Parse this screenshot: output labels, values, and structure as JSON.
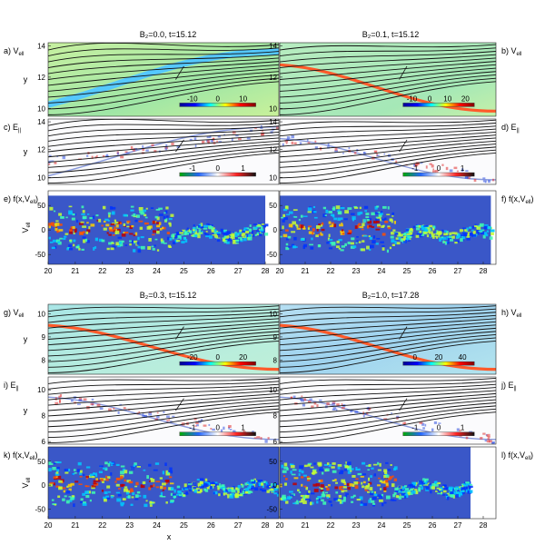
{
  "chart_data": [
    {
      "type": "heatmap",
      "titles": {
        "top_left": "B₂=0.0, t=15.12",
        "top_right": "B₂=0.1, t=15.12",
        "bottom_left": "B₂=0.3, t=15.12",
        "bottom_right": "B₂=1.0, t=17.28"
      },
      "xlabel": "x",
      "x_ticks": [
        20,
        21,
        22,
        23,
        24,
        25,
        26,
        27,
        28
      ],
      "xlim": [
        20,
        28.5
      ],
      "panels": [
        {
          "letter": "a)",
          "quantity": "V",
          "sub": "ell",
          "group": 0,
          "row": 0,
          "col": 0,
          "field": "V",
          "yticks": [
            10,
            12,
            14
          ],
          "ylim": [
            9.5,
            14.2
          ],
          "colorbar": [
            -10,
            0,
            10
          ],
          "cb_labels": [
            "-10",
            "0",
            "10"
          ],
          "ylabel": "y"
        },
        {
          "letter": "b)",
          "quantity": "V",
          "sub": "ell",
          "group": 0,
          "row": 0,
          "col": 1,
          "field": "V",
          "yticks": [
            10,
            12,
            14
          ],
          "ylim": [
            9.5,
            14.2
          ],
          "colorbar": [
            -10,
            0,
            10,
            20
          ],
          "cb_labels": [
            "-10",
            "0",
            "10",
            "20"
          ]
        },
        {
          "letter": "c)",
          "quantity": "E",
          "sub": "||",
          "group": 0,
          "row": 1,
          "col": 0,
          "field": "E",
          "yticks": [
            10,
            12,
            14
          ],
          "ylim": [
            9.5,
            14.2
          ],
          "colorbar": [
            -1,
            0,
            1
          ],
          "cb_labels": [
            "-1",
            "0",
            "1"
          ],
          "ylabel": "y"
        },
        {
          "letter": "d)",
          "quantity": "E",
          "sub": "||",
          "group": 0,
          "row": 1,
          "col": 1,
          "field": "E",
          "yticks": [
            10,
            12,
            14
          ],
          "ylim": [
            9.5,
            14.2
          ],
          "colorbar": [
            -1,
            0,
            1
          ],
          "cb_labels": [
            "-1",
            "0",
            "1"
          ]
        },
        {
          "letter": "e)",
          "quantity": "f(x,V",
          "sub": "ell",
          "group": 0,
          "row": 2,
          "col": 0,
          "field": "F",
          "yticks": [
            -50,
            0,
            50
          ],
          "ylim": [
            -70,
            80
          ],
          "ylabel": "V_ell"
        },
        {
          "letter": "f)",
          "quantity": "f(x,V",
          "sub": "ell",
          "group": 0,
          "row": 2,
          "col": 1,
          "field": "F",
          "yticks": [
            -50,
            0,
            50
          ],
          "ylim": [
            -70,
            80
          ]
        },
        {
          "letter": "g)",
          "quantity": "V",
          "sub": "ell",
          "group": 1,
          "row": 0,
          "col": 0,
          "field": "V",
          "yticks": [
            8,
            9,
            10
          ],
          "ylim": [
            7.4,
            10.4
          ],
          "colorbar": [
            -20,
            0,
            20
          ],
          "cb_labels": [
            "-20",
            "0",
            "20"
          ],
          "ylabel": "y"
        },
        {
          "letter": "h)",
          "quantity": "V",
          "sub": "ell",
          "group": 1,
          "row": 0,
          "col": 1,
          "field": "V",
          "yticks": [
            8,
            9,
            10
          ],
          "ylim": [
            7.4,
            10.4
          ],
          "colorbar": [
            0,
            20,
            40
          ],
          "cb_labels": [
            "0",
            "20",
            "40"
          ]
        },
        {
          "letter": "i)",
          "quantity": "E",
          "sub": "||",
          "group": 1,
          "row": 1,
          "col": 0,
          "field": "E",
          "yticks": [
            6,
            8,
            10
          ],
          "ylim": [
            5.8,
            11
          ],
          "colorbar": [
            -1,
            0,
            1
          ],
          "cb_labels": [
            "-1",
            "0",
            "1"
          ],
          "ylabel": "y"
        },
        {
          "letter": "j)",
          "quantity": "E",
          "sub": "||",
          "group": 1,
          "row": 1,
          "col": 1,
          "field": "E",
          "yticks": [
            6,
            8,
            10
          ],
          "ylim": [
            5.8,
            11
          ],
          "colorbar": [
            -1,
            0,
            1
          ],
          "cb_labels": [
            "-1",
            "0",
            "1"
          ]
        },
        {
          "letter": "k)",
          "quantity": "f(x,V",
          "sub": "ell",
          "group": 1,
          "row": 2,
          "col": 0,
          "field": "F",
          "yticks": [
            -50,
            0,
            50
          ],
          "ylim": [
            -70,
            80
          ],
          "ylabel": "V_ell"
        },
        {
          "letter": "l)",
          "quantity": "f(x,V",
          "sub": "ell",
          "group": 1,
          "row": 2,
          "col": 1,
          "field": "F",
          "yticks": [
            -50,
            0,
            50
          ],
          "ylim": [
            -70,
            80
          ]
        }
      ]
    }
  ],
  "colors": {
    "field_bg": "#3a57c8",
    "contour": "#111111",
    "jet": [
      "#00008f",
      "#0000ff",
      "#00ffff",
      "#ffff00",
      "#ff0000",
      "#800000"
    ]
  }
}
